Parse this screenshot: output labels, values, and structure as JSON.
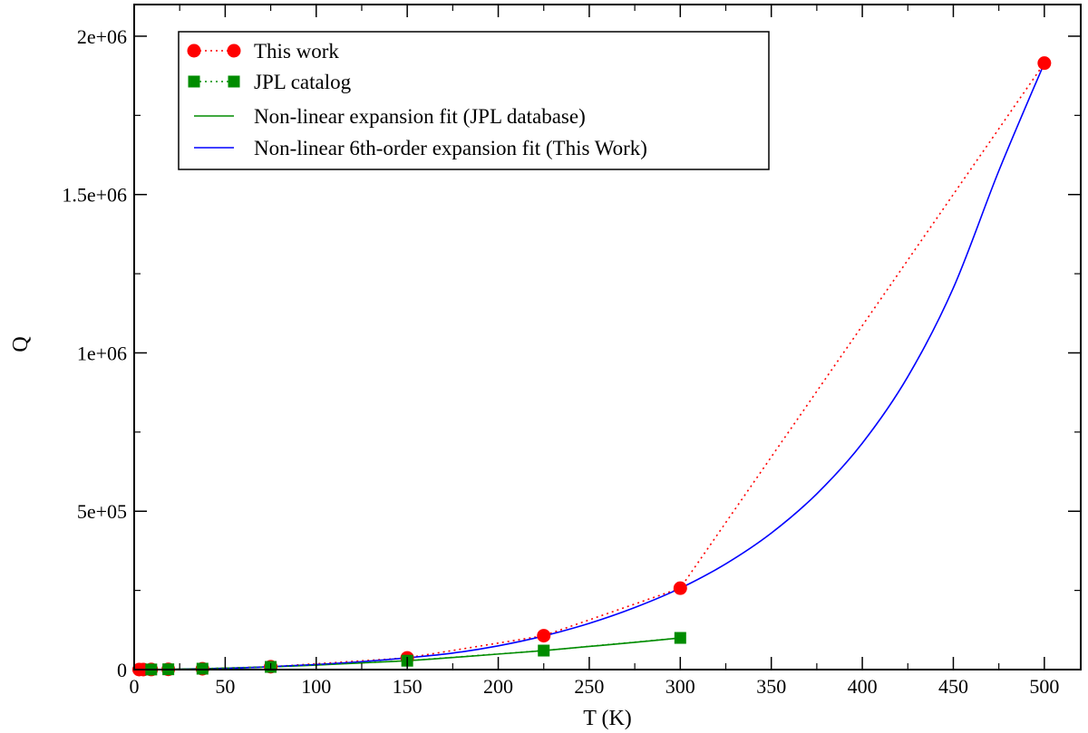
{
  "chart_data": {
    "type": "line",
    "xlabel": "T (K)",
    "ylabel": "Q",
    "xlim": [
      0,
      520
    ],
    "ylim": [
      0,
      2100000
    ],
    "x_ticks": [
      0,
      50,
      100,
      150,
      200,
      250,
      300,
      350,
      400,
      450,
      500
    ],
    "x_tick_labels": [
      "0",
      "50",
      "100",
      "150",
      "200",
      "250",
      "300",
      "350",
      "400",
      "450",
      "500"
    ],
    "y_ticks": [
      0,
      500000,
      1000000,
      1500000,
      2000000
    ],
    "y_tick_labels": [
      "0",
      "5e+05",
      "1e+06",
      "1.5e+06",
      "2e+06"
    ],
    "grid": false,
    "legend_position": "top-left",
    "series": [
      {
        "name": "This work",
        "style": "markers-dotted",
        "marker": "circle",
        "color": "#ff0000",
        "x": [
          2.725,
          5,
          9.375,
          18.75,
          37.5,
          75,
          150,
          225,
          300,
          500
        ],
        "y": [
          30,
          80,
          250,
          800,
          2500,
          9000,
          37000,
          107000,
          257000,
          1915000
        ]
      },
      {
        "name": "JPL catalog",
        "style": "markers-dotted",
        "marker": "square",
        "color": "#008c00",
        "x": [
          9.375,
          18.75,
          37.5,
          75,
          150,
          225,
          300
        ],
        "y": [
          300,
          900,
          2800,
          8500,
          28000,
          60000,
          100000
        ]
      },
      {
        "name": "Non-linear expansion fit (JPL database)",
        "style": "line",
        "color": "#008c00",
        "x": [
          2.725,
          10,
          20,
          37.5,
          50,
          75,
          100,
          125,
          150,
          175,
          200,
          225,
          250,
          275,
          300
        ],
        "y": [
          50,
          400,
          1000,
          2800,
          4500,
          8500,
          14000,
          21000,
          28000,
          38000,
          49000,
          60000,
          73000,
          86000,
          100000
        ]
      },
      {
        "name": "Non-linear 6th-order expansion fit (This Work)",
        "style": "line",
        "color": "#0000ff",
        "x": [
          2.725,
          25,
          50,
          75,
          100,
          125,
          150,
          175,
          200,
          225,
          250,
          275,
          300,
          325,
          350,
          375,
          400,
          425,
          450,
          475,
          500
        ],
        "y": [
          0,
          1000,
          3500,
          9000,
          16000,
          25000,
          37000,
          52000,
          75000,
          106000,
          146000,
          196000,
          257000,
          334000,
          431000,
          555000,
          715000,
          925000,
          1205000,
          1575000,
          1915000
        ]
      }
    ]
  }
}
